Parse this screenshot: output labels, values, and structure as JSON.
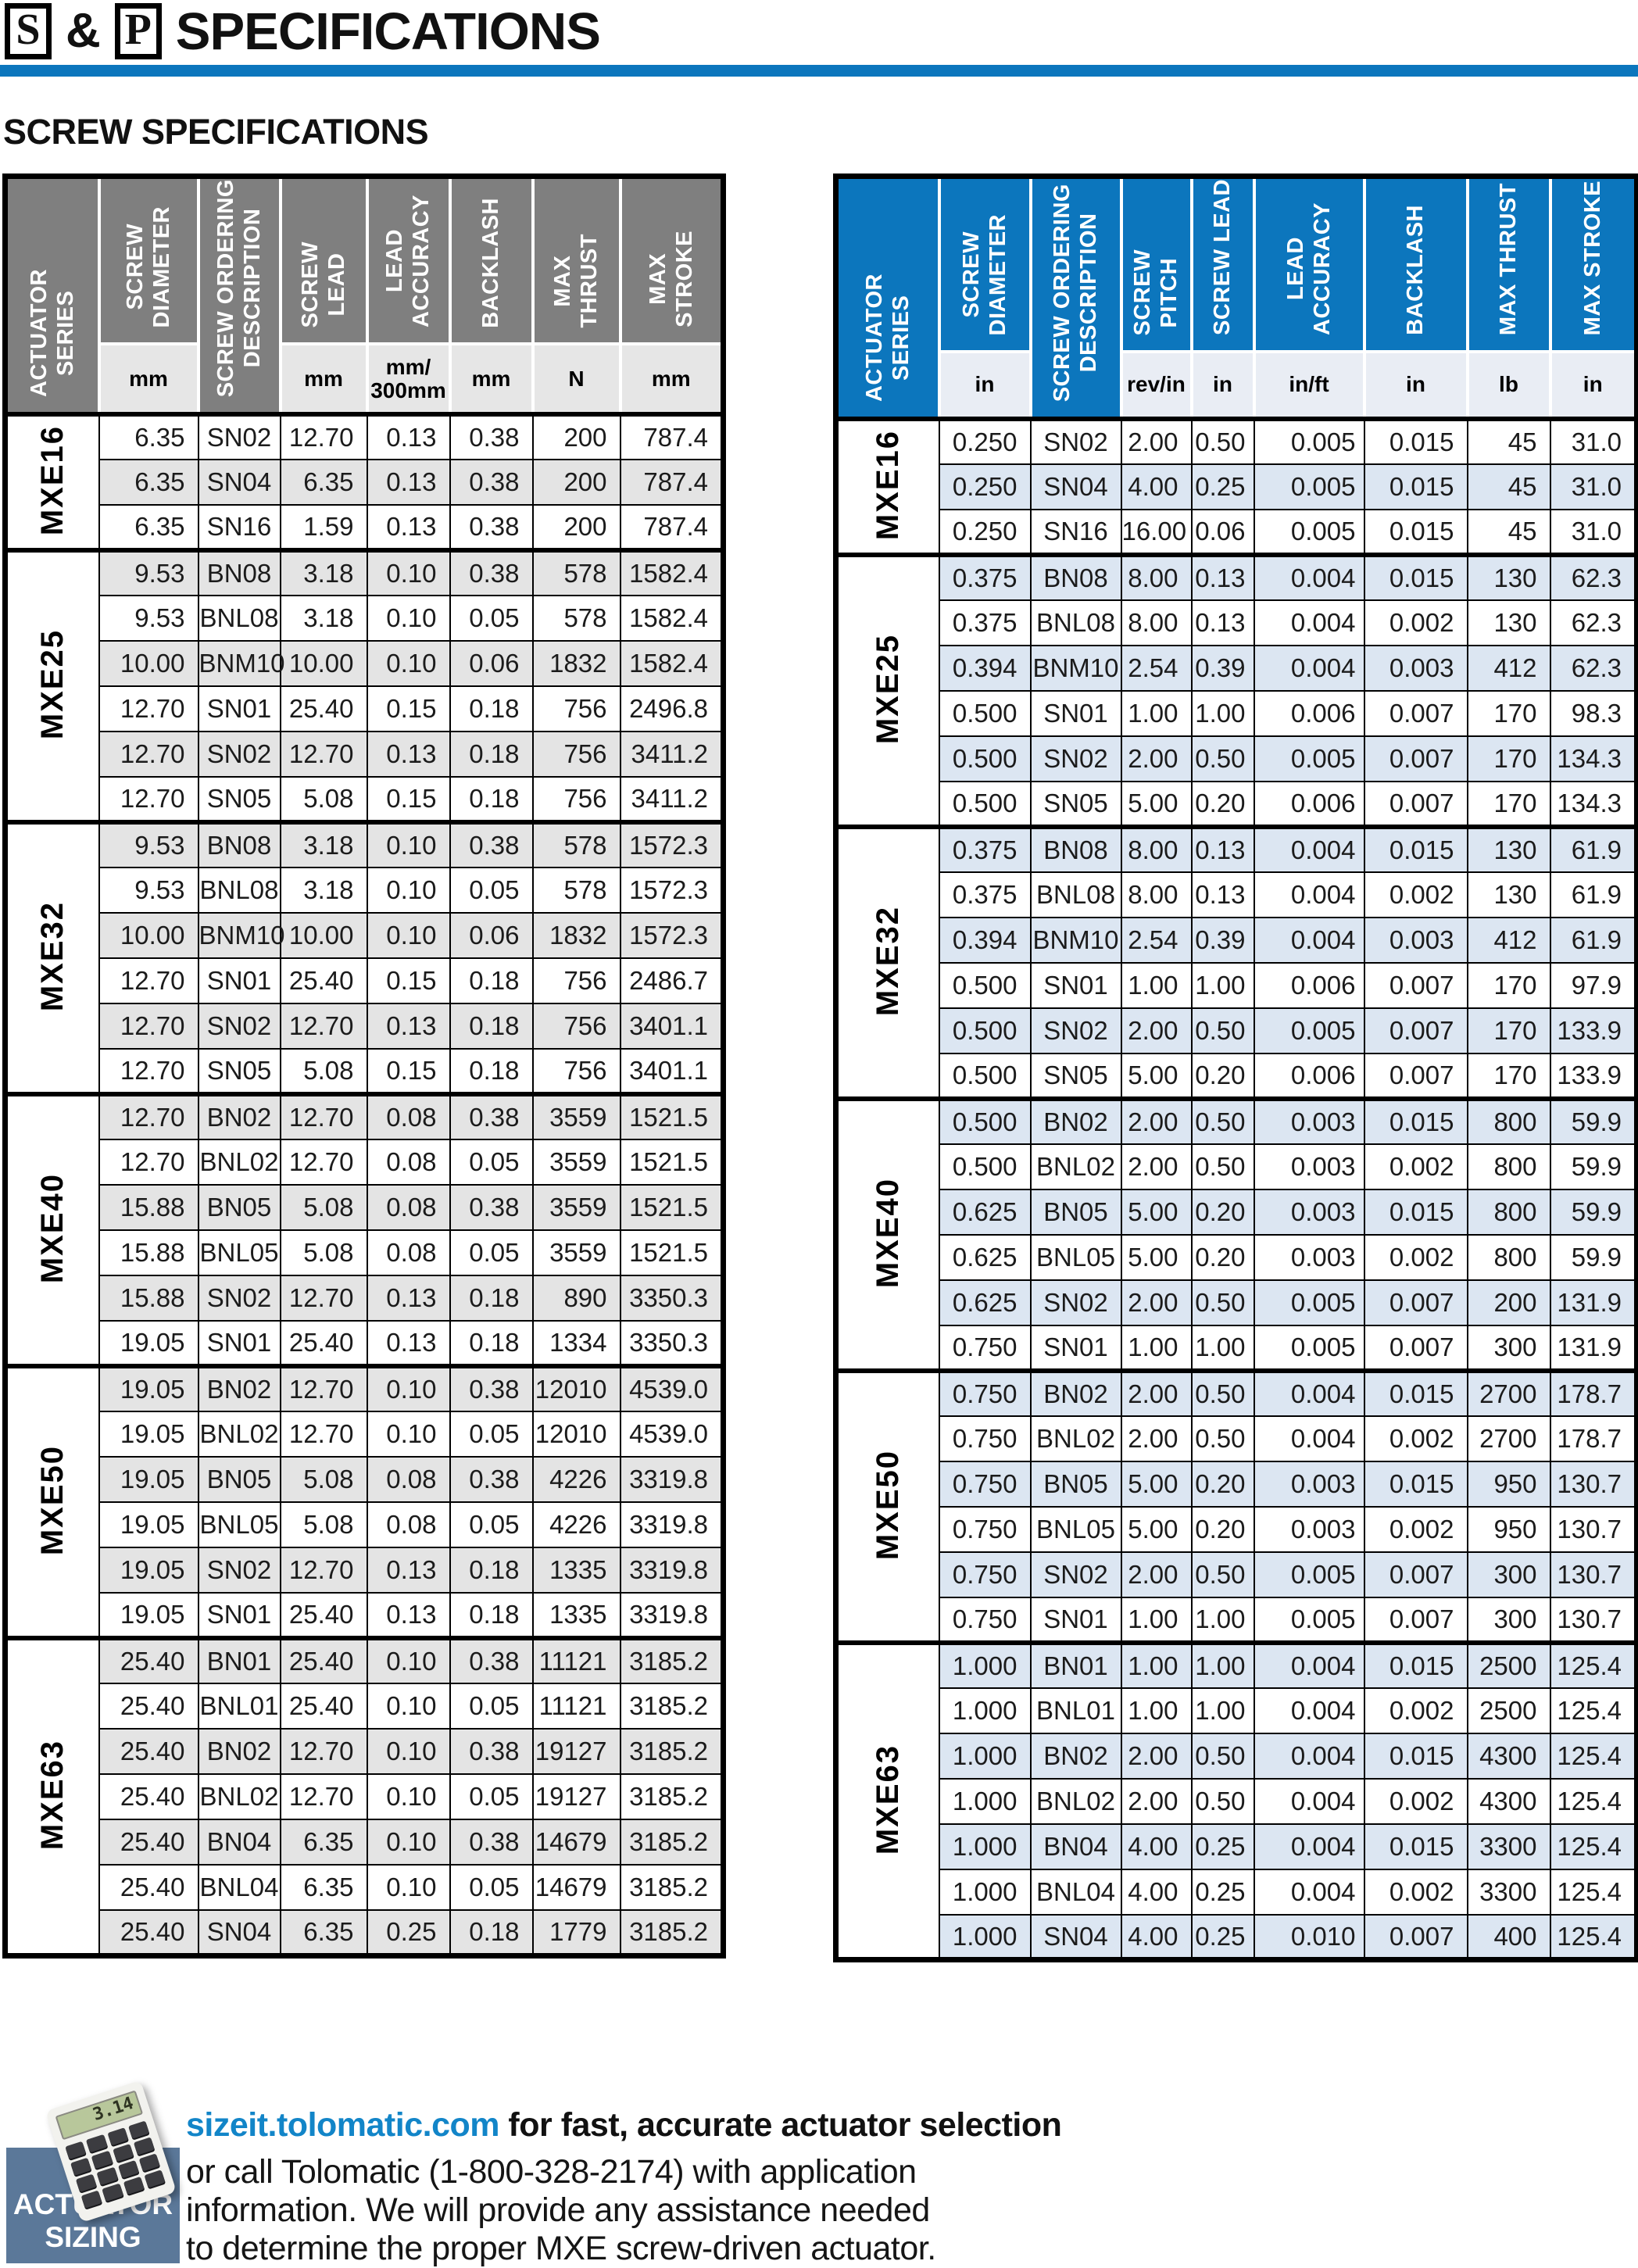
{
  "header": {
    "box_letter_1": "S",
    "joiner": "&",
    "box_letter_2": "P",
    "title": "SPECIFICATIONS",
    "section_title": "SCREW SPECIFICATIONS"
  },
  "colors": {
    "brand_blue": "#0c76bd",
    "link_blue": "#1285c8",
    "header_gray": "#7f7f7f",
    "row_gray": "#e4e4e4",
    "row_blue": "#dce6f2",
    "unit_gray": "#e6e6e6",
    "unit_blue": "#e9edf4",
    "badge_bg": "#5b7899"
  },
  "tables": {
    "metric": {
      "columns": [
        {
          "label": "ACTUATOR\nSERIES",
          "full": true
        },
        {
          "label": "SCREW\nDIAMETER",
          "unit": "mm"
        },
        {
          "label": "SCREW ORDERING\nDESCRIPTION",
          "full": true
        },
        {
          "label": "SCREW\nLEAD",
          "unit": "mm"
        },
        {
          "label": "LEAD\nACCURACY",
          "unit": "mm/\n300mm"
        },
        {
          "label": "BACKLASH",
          "unit": "mm"
        },
        {
          "label": "MAX\nTHRUST",
          "unit": "N"
        },
        {
          "label": "MAX\nSTROKE",
          "unit": "mm"
        }
      ],
      "groups": [
        {
          "series": "MXE16",
          "rows": [
            [
              "6.35",
              "SN02",
              "12.70",
              "0.13",
              "0.38",
              "200",
              "787.4"
            ],
            [
              "6.35",
              "SN04",
              "6.35",
              "0.13",
              "0.38",
              "200",
              "787.4"
            ],
            [
              "6.35",
              "SN16",
              "1.59",
              "0.13",
              "0.38",
              "200",
              "787.4"
            ]
          ]
        },
        {
          "series": "MXE25",
          "rows": [
            [
              "9.53",
              "BN08",
              "3.18",
              "0.10",
              "0.38",
              "578",
              "1582.4"
            ],
            [
              "9.53",
              "BNL08",
              "3.18",
              "0.10",
              "0.05",
              "578",
              "1582.4"
            ],
            [
              "10.00",
              "BNM10",
              "10.00",
              "0.10",
              "0.06",
              "1832",
              "1582.4"
            ],
            [
              "12.70",
              "SN01",
              "25.40",
              "0.15",
              "0.18",
              "756",
              "2496.8"
            ],
            [
              "12.70",
              "SN02",
              "12.70",
              "0.13",
              "0.18",
              "756",
              "3411.2"
            ],
            [
              "12.70",
              "SN05",
              "5.08",
              "0.15",
              "0.18",
              "756",
              "3411.2"
            ]
          ]
        },
        {
          "series": "MXE32",
          "rows": [
            [
              "9.53",
              "BN08",
              "3.18",
              "0.10",
              "0.38",
              "578",
              "1572.3"
            ],
            [
              "9.53",
              "BNL08",
              "3.18",
              "0.10",
              "0.05",
              "578",
              "1572.3"
            ],
            [
              "10.00",
              "BNM10",
              "10.00",
              "0.10",
              "0.06",
              "1832",
              "1572.3"
            ],
            [
              "12.70",
              "SN01",
              "25.40",
              "0.15",
              "0.18",
              "756",
              "2486.7"
            ],
            [
              "12.70",
              "SN02",
              "12.70",
              "0.13",
              "0.18",
              "756",
              "3401.1"
            ],
            [
              "12.70",
              "SN05",
              "5.08",
              "0.15",
              "0.18",
              "756",
              "3401.1"
            ]
          ]
        },
        {
          "series": "MXE40",
          "rows": [
            [
              "12.70",
              "BN02",
              "12.70",
              "0.08",
              "0.38",
              "3559",
              "1521.5"
            ],
            [
              "12.70",
              "BNL02",
              "12.70",
              "0.08",
              "0.05",
              "3559",
              "1521.5"
            ],
            [
              "15.88",
              "BN05",
              "5.08",
              "0.08",
              "0.38",
              "3559",
              "1521.5"
            ],
            [
              "15.88",
              "BNL05",
              "5.08",
              "0.08",
              "0.05",
              "3559",
              "1521.5"
            ],
            [
              "15.88",
              "SN02",
              "12.70",
              "0.13",
              "0.18",
              "890",
              "3350.3"
            ],
            [
              "19.05",
              "SN01",
              "25.40",
              "0.13",
              "0.18",
              "1334",
              "3350.3"
            ]
          ]
        },
        {
          "series": "MXE50",
          "rows": [
            [
              "19.05",
              "BN02",
              "12.70",
              "0.10",
              "0.38",
              "12010",
              "4539.0"
            ],
            [
              "19.05",
              "BNL02",
              "12.70",
              "0.10",
              "0.05",
              "12010",
              "4539.0"
            ],
            [
              "19.05",
              "BN05",
              "5.08",
              "0.08",
              "0.38",
              "4226",
              "3319.8"
            ],
            [
              "19.05",
              "BNL05",
              "5.08",
              "0.08",
              "0.05",
              "4226",
              "3319.8"
            ],
            [
              "19.05",
              "SN02",
              "12.70",
              "0.13",
              "0.18",
              "1335",
              "3319.8"
            ],
            [
              "19.05",
              "SN01",
              "25.40",
              "0.13",
              "0.18",
              "1335",
              "3319.8"
            ]
          ]
        },
        {
          "series": "MXE63",
          "rows": [
            [
              "25.40",
              "BN01",
              "25.40",
              "0.10",
              "0.38",
              "11121",
              "3185.2"
            ],
            [
              "25.40",
              "BNL01",
              "25.40",
              "0.10",
              "0.05",
              "11121",
              "3185.2"
            ],
            [
              "25.40",
              "BN02",
              "12.70",
              "0.10",
              "0.38",
              "19127",
              "3185.2"
            ],
            [
              "25.40",
              "BNL02",
              "12.70",
              "0.10",
              "0.05",
              "19127",
              "3185.2"
            ],
            [
              "25.40",
              "BN04",
              "6.35",
              "0.10",
              "0.38",
              "14679",
              "3185.2"
            ],
            [
              "25.40",
              "BNL04",
              "6.35",
              "0.10",
              "0.05",
              "14679",
              "3185.2"
            ],
            [
              "25.40",
              "SN04",
              "6.35",
              "0.25",
              "0.18",
              "1779",
              "3185.2"
            ]
          ]
        }
      ]
    },
    "imperial": {
      "columns": [
        {
          "label": "ACTUATOR\nSERIES",
          "full": true
        },
        {
          "label": "SCREW\nDIAMETER",
          "unit": "in"
        },
        {
          "label": "SCREW ORDERING\nDESCRIPTION",
          "full": true
        },
        {
          "label": "SCREW\nPITCH",
          "unit": "rev/in"
        },
        {
          "label": "SCREW LEAD",
          "unit": "in"
        },
        {
          "label": "LEAD\nACCURACY",
          "unit": "in/ft"
        },
        {
          "label": "BACKLASH",
          "unit": "in"
        },
        {
          "label": "MAX THRUST",
          "unit": "lb"
        },
        {
          "label": "MAX STROKE",
          "unit": "in"
        }
      ],
      "groups": [
        {
          "series": "MXE16",
          "rows": [
            [
              "0.250",
              "SN02",
              "2.00",
              "0.50",
              "0.005",
              "0.015",
              "45",
              "31.0"
            ],
            [
              "0.250",
              "SN04",
              "4.00",
              "0.25",
              "0.005",
              "0.015",
              "45",
              "31.0"
            ],
            [
              "0.250",
              "SN16",
              "16.00",
              "0.06",
              "0.005",
              "0.015",
              "45",
              "31.0"
            ]
          ]
        },
        {
          "series": "MXE25",
          "rows": [
            [
              "0.375",
              "BN08",
              "8.00",
              "0.13",
              "0.004",
              "0.015",
              "130",
              "62.3"
            ],
            [
              "0.375",
              "BNL08",
              "8.00",
              "0.13",
              "0.004",
              "0.002",
              "130",
              "62.3"
            ],
            [
              "0.394",
              "BNM10",
              "2.54",
              "0.39",
              "0.004",
              "0.003",
              "412",
              "62.3"
            ],
            [
              "0.500",
              "SN01",
              "1.00",
              "1.00",
              "0.006",
              "0.007",
              "170",
              "98.3"
            ],
            [
              "0.500",
              "SN02",
              "2.00",
              "0.50",
              "0.005",
              "0.007",
              "170",
              "134.3"
            ],
            [
              "0.500",
              "SN05",
              "5.00",
              "0.20",
              "0.006",
              "0.007",
              "170",
              "134.3"
            ]
          ]
        },
        {
          "series": "MXE32",
          "rows": [
            [
              "0.375",
              "BN08",
              "8.00",
              "0.13",
              "0.004",
              "0.015",
              "130",
              "61.9"
            ],
            [
              "0.375",
              "BNL08",
              "8.00",
              "0.13",
              "0.004",
              "0.002",
              "130",
              "61.9"
            ],
            [
              "0.394",
              "BNM10",
              "2.54",
              "0.39",
              "0.004",
              "0.003",
              "412",
              "61.9"
            ],
            [
              "0.500",
              "SN01",
              "1.00",
              "1.00",
              "0.006",
              "0.007",
              "170",
              "97.9"
            ],
            [
              "0.500",
              "SN02",
              "2.00",
              "0.50",
              "0.005",
              "0.007",
              "170",
              "133.9"
            ],
            [
              "0.500",
              "SN05",
              "5.00",
              "0.20",
              "0.006",
              "0.007",
              "170",
              "133.9"
            ]
          ]
        },
        {
          "series": "MXE40",
          "rows": [
            [
              "0.500",
              "BN02",
              "2.00",
              "0.50",
              "0.003",
              "0.015",
              "800",
              "59.9"
            ],
            [
              "0.500",
              "BNL02",
              "2.00",
              "0.50",
              "0.003",
              "0.002",
              "800",
              "59.9"
            ],
            [
              "0.625",
              "BN05",
              "5.00",
              "0.20",
              "0.003",
              "0.015",
              "800",
              "59.9"
            ],
            [
              "0.625",
              "BNL05",
              "5.00",
              "0.20",
              "0.003",
              "0.002",
              "800",
              "59.9"
            ],
            [
              "0.625",
              "SN02",
              "2.00",
              "0.50",
              "0.005",
              "0.007",
              "200",
              "131.9"
            ],
            [
              "0.750",
              "SN01",
              "1.00",
              "1.00",
              "0.005",
              "0.007",
              "300",
              "131.9"
            ]
          ]
        },
        {
          "series": "MXE50",
          "rows": [
            [
              "0.750",
              "BN02",
              "2.00",
              "0.50",
              "0.004",
              "0.015",
              "2700",
              "178.7"
            ],
            [
              "0.750",
              "BNL02",
              "2.00",
              "0.50",
              "0.004",
              "0.002",
              "2700",
              "178.7"
            ],
            [
              "0.750",
              "BN05",
              "5.00",
              "0.20",
              "0.003",
              "0.015",
              "950",
              "130.7"
            ],
            [
              "0.750",
              "BNL05",
              "5.00",
              "0.20",
              "0.003",
              "0.002",
              "950",
              "130.7"
            ],
            [
              "0.750",
              "SN02",
              "2.00",
              "0.50",
              "0.005",
              "0.007",
              "300",
              "130.7"
            ],
            [
              "0.750",
              "SN01",
              "1.00",
              "1.00",
              "0.005",
              "0.007",
              "300",
              "130.7"
            ]
          ]
        },
        {
          "series": "MXE63",
          "rows": [
            [
              "1.000",
              "BN01",
              "1.00",
              "1.00",
              "0.004",
              "0.015",
              "2500",
              "125.4"
            ],
            [
              "1.000",
              "BNL01",
              "1.00",
              "1.00",
              "0.004",
              "0.002",
              "2500",
              "125.4"
            ],
            [
              "1.000",
              "BN02",
              "2.00",
              "0.50",
              "0.004",
              "0.015",
              "4300",
              "125.4"
            ],
            [
              "1.000",
              "BNL02",
              "2.00",
              "0.50",
              "0.004",
              "0.002",
              "4300",
              "125.4"
            ],
            [
              "1.000",
              "BN04",
              "4.00",
              "0.25",
              "0.004",
              "0.015",
              "3300",
              "125.4"
            ],
            [
              "1.000",
              "BNL04",
              "4.00",
              "0.25",
              "0.004",
              "0.002",
              "3300",
              "125.4"
            ],
            [
              "1.000",
              "SN04",
              "4.00",
              "0.25",
              "0.010",
              "0.007",
              "400",
              "125.4"
            ]
          ]
        }
      ]
    }
  },
  "footer": {
    "badge": {
      "line1": "ACTUATOR",
      "line2": "SIZING",
      "calc_display": "3.14"
    },
    "headline_link": "sizeit.tolomatic.com",
    "headline_rest": " for fast, accurate actuator selection",
    "body_lines": [
      "or call Tolomatic (1-800-328-2174) with application",
      "information. We will provide any assistance needed",
      "to determine the proper MXE screw-driven actuator."
    ]
  }
}
